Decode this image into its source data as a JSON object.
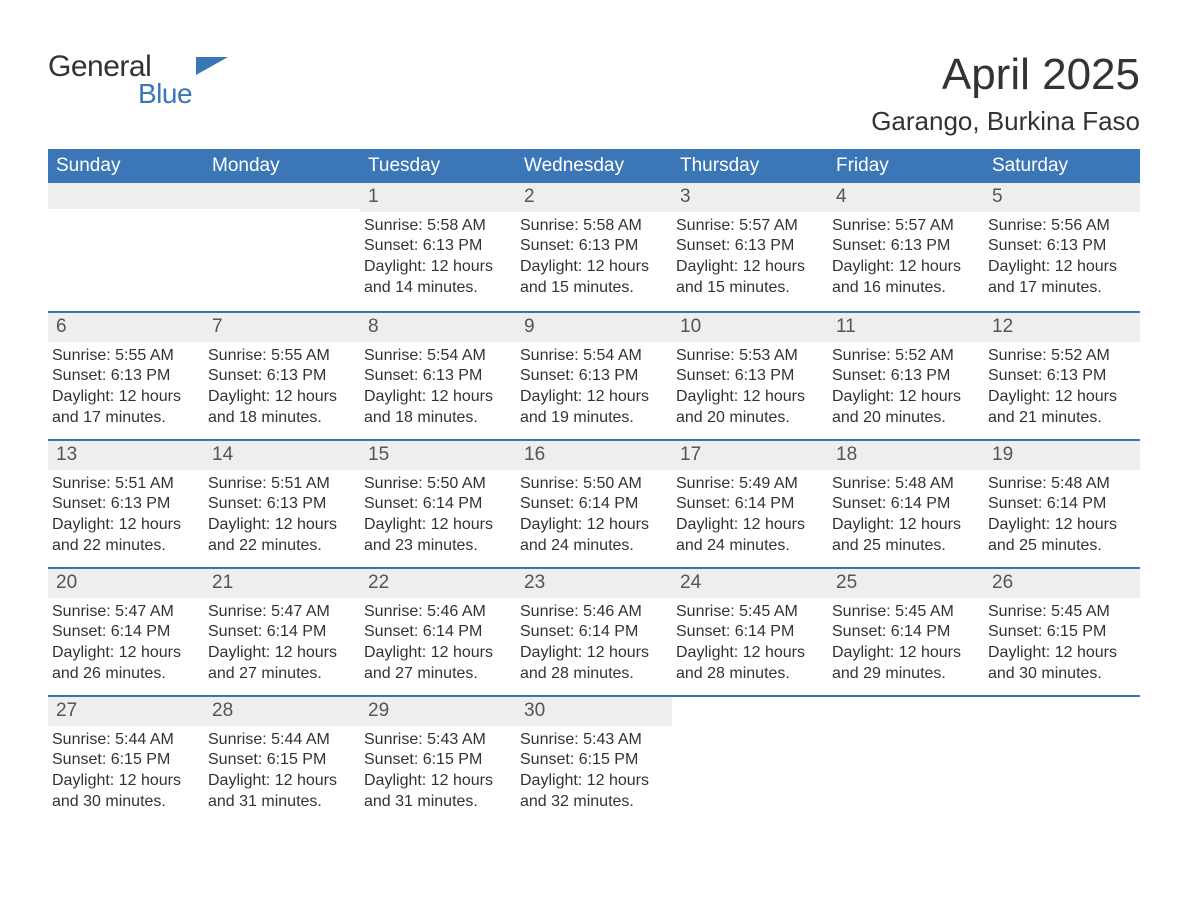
{
  "logo": {
    "word1": "General",
    "word2": "Blue"
  },
  "title": "April 2025",
  "location": "Garango, Burkina Faso",
  "colors": {
    "header_bg": "#3b76b6",
    "day_number_bg": "#eeeeee",
    "text": "#333333",
    "logo_accent": "#3b76b6",
    "background": "#ffffff"
  },
  "day_headers": [
    "Sunday",
    "Monday",
    "Tuesday",
    "Wednesday",
    "Thursday",
    "Friday",
    "Saturday"
  ],
  "weeks": [
    [
      null,
      null,
      {
        "n": "1",
        "sunrise": "Sunrise: 5:58 AM",
        "sunset": "Sunset: 6:13 PM",
        "daylight1": "Daylight: 12 hours",
        "daylight2": "and 14 minutes."
      },
      {
        "n": "2",
        "sunrise": "Sunrise: 5:58 AM",
        "sunset": "Sunset: 6:13 PM",
        "daylight1": "Daylight: 12 hours",
        "daylight2": "and 15 minutes."
      },
      {
        "n": "3",
        "sunrise": "Sunrise: 5:57 AM",
        "sunset": "Sunset: 6:13 PM",
        "daylight1": "Daylight: 12 hours",
        "daylight2": "and 15 minutes."
      },
      {
        "n": "4",
        "sunrise": "Sunrise: 5:57 AM",
        "sunset": "Sunset: 6:13 PM",
        "daylight1": "Daylight: 12 hours",
        "daylight2": "and 16 minutes."
      },
      {
        "n": "5",
        "sunrise": "Sunrise: 5:56 AM",
        "sunset": "Sunset: 6:13 PM",
        "daylight1": "Daylight: 12 hours",
        "daylight2": "and 17 minutes."
      }
    ],
    [
      {
        "n": "6",
        "sunrise": "Sunrise: 5:55 AM",
        "sunset": "Sunset: 6:13 PM",
        "daylight1": "Daylight: 12 hours",
        "daylight2": "and 17 minutes."
      },
      {
        "n": "7",
        "sunrise": "Sunrise: 5:55 AM",
        "sunset": "Sunset: 6:13 PM",
        "daylight1": "Daylight: 12 hours",
        "daylight2": "and 18 minutes."
      },
      {
        "n": "8",
        "sunrise": "Sunrise: 5:54 AM",
        "sunset": "Sunset: 6:13 PM",
        "daylight1": "Daylight: 12 hours",
        "daylight2": "and 18 minutes."
      },
      {
        "n": "9",
        "sunrise": "Sunrise: 5:54 AM",
        "sunset": "Sunset: 6:13 PM",
        "daylight1": "Daylight: 12 hours",
        "daylight2": "and 19 minutes."
      },
      {
        "n": "10",
        "sunrise": "Sunrise: 5:53 AM",
        "sunset": "Sunset: 6:13 PM",
        "daylight1": "Daylight: 12 hours",
        "daylight2": "and 20 minutes."
      },
      {
        "n": "11",
        "sunrise": "Sunrise: 5:52 AM",
        "sunset": "Sunset: 6:13 PM",
        "daylight1": "Daylight: 12 hours",
        "daylight2": "and 20 minutes."
      },
      {
        "n": "12",
        "sunrise": "Sunrise: 5:52 AM",
        "sunset": "Sunset: 6:13 PM",
        "daylight1": "Daylight: 12 hours",
        "daylight2": "and 21 minutes."
      }
    ],
    [
      {
        "n": "13",
        "sunrise": "Sunrise: 5:51 AM",
        "sunset": "Sunset: 6:13 PM",
        "daylight1": "Daylight: 12 hours",
        "daylight2": "and 22 minutes."
      },
      {
        "n": "14",
        "sunrise": "Sunrise: 5:51 AM",
        "sunset": "Sunset: 6:13 PM",
        "daylight1": "Daylight: 12 hours",
        "daylight2": "and 22 minutes."
      },
      {
        "n": "15",
        "sunrise": "Sunrise: 5:50 AM",
        "sunset": "Sunset: 6:14 PM",
        "daylight1": "Daylight: 12 hours",
        "daylight2": "and 23 minutes."
      },
      {
        "n": "16",
        "sunrise": "Sunrise: 5:50 AM",
        "sunset": "Sunset: 6:14 PM",
        "daylight1": "Daylight: 12 hours",
        "daylight2": "and 24 minutes."
      },
      {
        "n": "17",
        "sunrise": "Sunrise: 5:49 AM",
        "sunset": "Sunset: 6:14 PM",
        "daylight1": "Daylight: 12 hours",
        "daylight2": "and 24 minutes."
      },
      {
        "n": "18",
        "sunrise": "Sunrise: 5:48 AM",
        "sunset": "Sunset: 6:14 PM",
        "daylight1": "Daylight: 12 hours",
        "daylight2": "and 25 minutes."
      },
      {
        "n": "19",
        "sunrise": "Sunrise: 5:48 AM",
        "sunset": "Sunset: 6:14 PM",
        "daylight1": "Daylight: 12 hours",
        "daylight2": "and 25 minutes."
      }
    ],
    [
      {
        "n": "20",
        "sunrise": "Sunrise: 5:47 AM",
        "sunset": "Sunset: 6:14 PM",
        "daylight1": "Daylight: 12 hours",
        "daylight2": "and 26 minutes."
      },
      {
        "n": "21",
        "sunrise": "Sunrise: 5:47 AM",
        "sunset": "Sunset: 6:14 PM",
        "daylight1": "Daylight: 12 hours",
        "daylight2": "and 27 minutes."
      },
      {
        "n": "22",
        "sunrise": "Sunrise: 5:46 AM",
        "sunset": "Sunset: 6:14 PM",
        "daylight1": "Daylight: 12 hours",
        "daylight2": "and 27 minutes."
      },
      {
        "n": "23",
        "sunrise": "Sunrise: 5:46 AM",
        "sunset": "Sunset: 6:14 PM",
        "daylight1": "Daylight: 12 hours",
        "daylight2": "and 28 minutes."
      },
      {
        "n": "24",
        "sunrise": "Sunrise: 5:45 AM",
        "sunset": "Sunset: 6:14 PM",
        "daylight1": "Daylight: 12 hours",
        "daylight2": "and 28 minutes."
      },
      {
        "n": "25",
        "sunrise": "Sunrise: 5:45 AM",
        "sunset": "Sunset: 6:14 PM",
        "daylight1": "Daylight: 12 hours",
        "daylight2": "and 29 minutes."
      },
      {
        "n": "26",
        "sunrise": "Sunrise: 5:45 AM",
        "sunset": "Sunset: 6:15 PM",
        "daylight1": "Daylight: 12 hours",
        "daylight2": "and 30 minutes."
      }
    ],
    [
      {
        "n": "27",
        "sunrise": "Sunrise: 5:44 AM",
        "sunset": "Sunset: 6:15 PM",
        "daylight1": "Daylight: 12 hours",
        "daylight2": "and 30 minutes."
      },
      {
        "n": "28",
        "sunrise": "Sunrise: 5:44 AM",
        "sunset": "Sunset: 6:15 PM",
        "daylight1": "Daylight: 12 hours",
        "daylight2": "and 31 minutes."
      },
      {
        "n": "29",
        "sunrise": "Sunrise: 5:43 AM",
        "sunset": "Sunset: 6:15 PM",
        "daylight1": "Daylight: 12 hours",
        "daylight2": "and 31 minutes."
      },
      {
        "n": "30",
        "sunrise": "Sunrise: 5:43 AM",
        "sunset": "Sunset: 6:15 PM",
        "daylight1": "Daylight: 12 hours",
        "daylight2": "and 32 minutes."
      },
      null,
      null,
      null
    ]
  ]
}
